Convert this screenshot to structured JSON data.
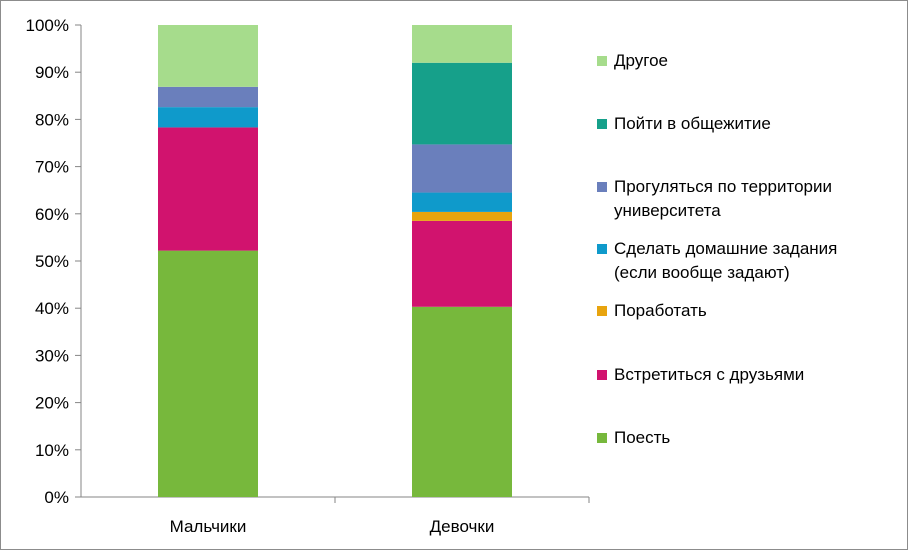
{
  "chart_data": {
    "type": "bar",
    "stacked": true,
    "percent_stacked": true,
    "categories": [
      "Мальчики",
      "Девочки"
    ],
    "ylim": [
      0,
      100
    ],
    "y_ticks": [
      "0%",
      "10%",
      "20%",
      "30%",
      "40%",
      "50%",
      "60%",
      "70%",
      "80%",
      "90%",
      "100%"
    ],
    "grid": false,
    "legend_position": "right",
    "series": [
      {
        "name": "Поесть",
        "color": "#77B83C",
        "values": [
          52.2,
          40.3
        ]
      },
      {
        "name": "Встретиться с друзьями",
        "color": "#D1136E",
        "values": [
          26.1,
          18.2
        ]
      },
      {
        "name": "Поработать",
        "color": "#E8A40E",
        "values": [
          0,
          1.9
        ]
      },
      {
        "name": "Сделать домашние задания (если вообще задают)",
        "color": "#0F9ACB",
        "values": [
          4.3,
          4.1
        ]
      },
      {
        "name": "Прогуляться по территории университета",
        "color": "#6A7FBC",
        "values": [
          4.3,
          10.2
        ]
      },
      {
        "name": "Пойти в общежитие",
        "color": "#16A08A",
        "values": [
          0,
          17.3
        ]
      },
      {
        "name": "Другое",
        "color": "#A6DC8C",
        "values": [
          13.1,
          8.0
        ]
      }
    ]
  }
}
